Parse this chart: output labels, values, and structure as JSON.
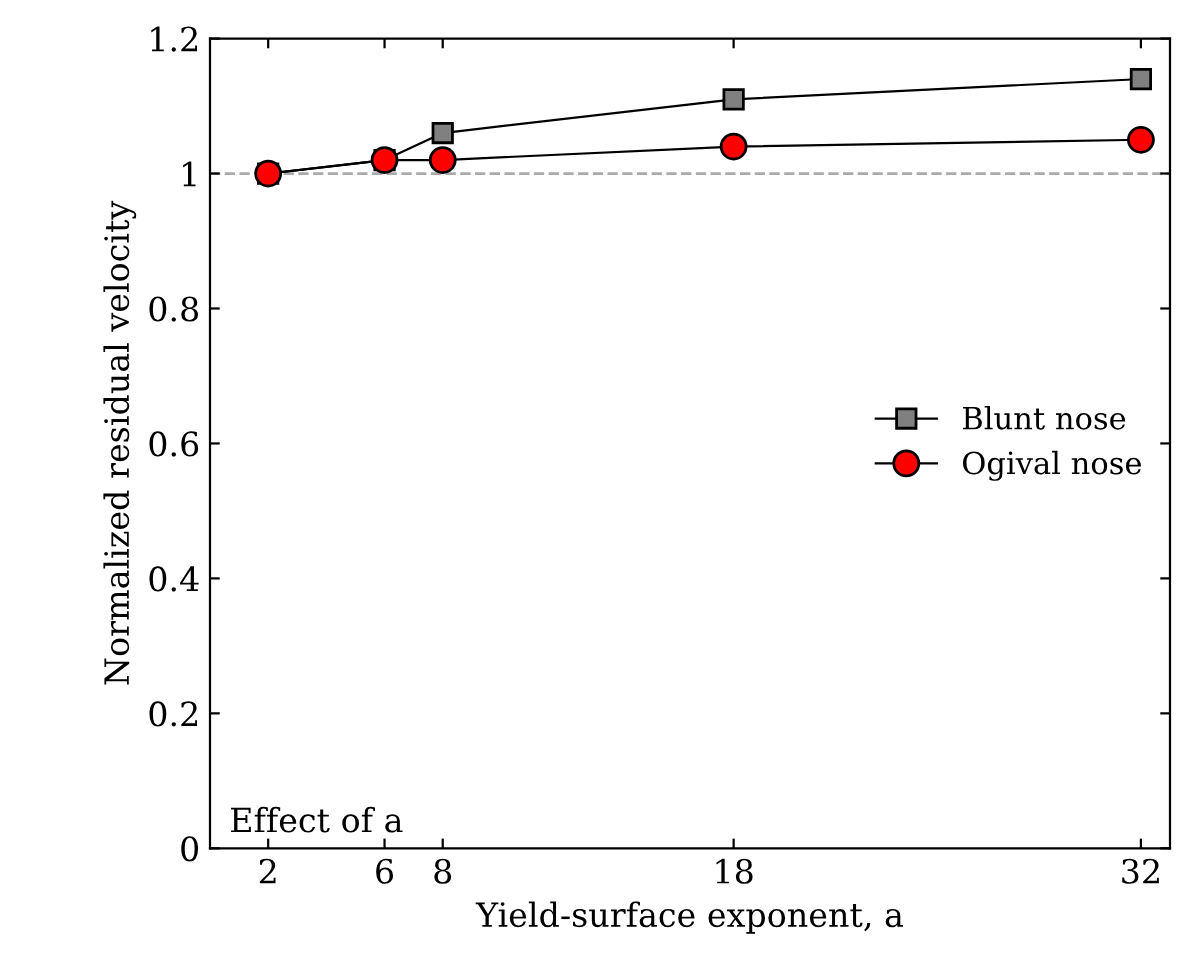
{
  "chart_data": {
    "type": "line",
    "xlabel": "Yield-surface exponent, a",
    "ylabel": "Normalized residual velocity",
    "x": [
      2,
      6,
      8,
      18,
      32
    ],
    "series": [
      {
        "name": "Blunt nose",
        "color": "#808080",
        "marker": "square",
        "values": [
          1.0,
          1.02,
          1.06,
          1.11,
          1.14
        ]
      },
      {
        "name": "Ogival nose",
        "color": "#ff0000",
        "marker": "circle",
        "values": [
          1.0,
          1.02,
          1.02,
          1.04,
          1.05
        ]
      }
    ],
    "xlim": [
      0,
      33
    ],
    "xticks": [
      2,
      6,
      8,
      18,
      32
    ],
    "ylim": [
      0,
      1.2
    ],
    "yticks": [
      0,
      0.2,
      0.4,
      0.6,
      0.8,
      1,
      1.2
    ],
    "ref_lines": [
      {
        "axis": "y",
        "value": 1,
        "color": "#aaaaaa",
        "line_style": "dashed"
      }
    ],
    "annotations": [
      "Effect of a"
    ],
    "legend": "right",
    "grid": false
  }
}
